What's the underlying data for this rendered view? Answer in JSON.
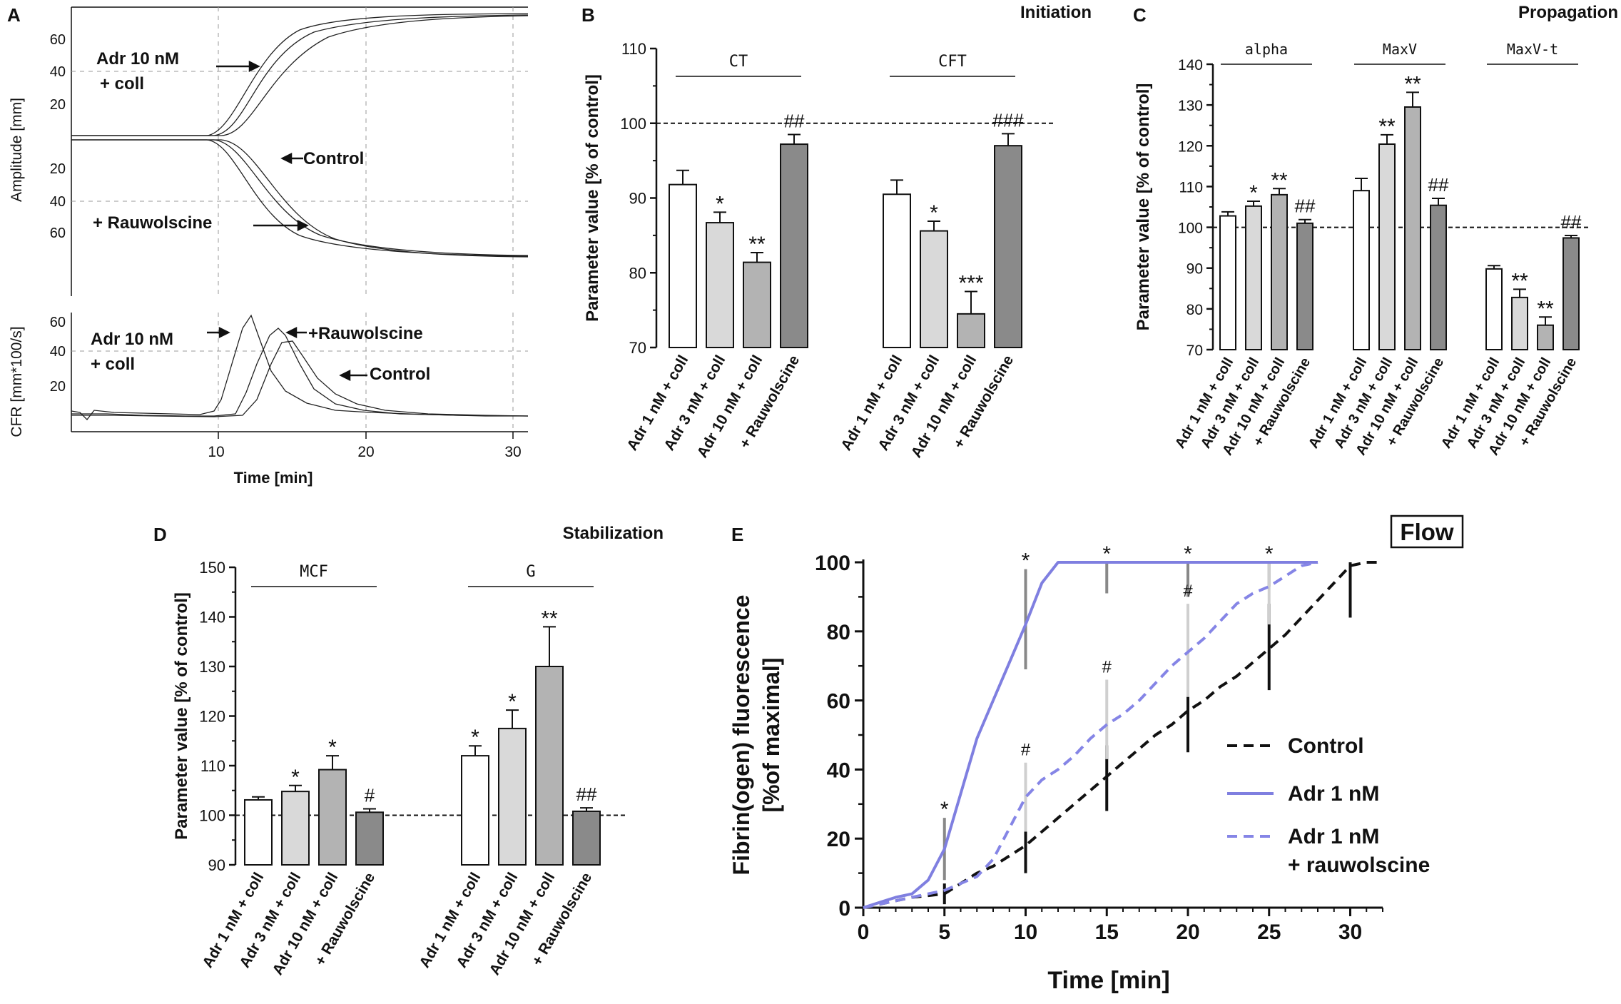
{
  "chart_data": [
    {
      "panel": "A",
      "type": "line",
      "top": {
        "ylabel": "Amplitude [mm]",
        "yticks_up": [
          "60",
          "40",
          "20"
        ],
        "yticks_down": [
          "20",
          "40",
          "60"
        ],
        "annotations": [
          "Adr 10 nM",
          "+ coll",
          "Control",
          "+ Rauwolscine"
        ]
      },
      "bottom": {
        "ylabel": "CFR [mm*100/s]",
        "yticks": [
          "60",
          "40",
          "20"
        ],
        "annotations": [
          "Adr 10 nM",
          "+ coll",
          "+Rauwolscine",
          "Control"
        ],
        "peaks": [
          {
            "name": "Adr 10 nM + coll",
            "x": 12.2,
            "y": 63
          },
          {
            "name": "+Rauwolscine",
            "x": 13.7,
            "y": 54
          },
          {
            "name": "Control",
            "x": 14.8,
            "y": 51
          }
        ]
      },
      "xlabel": "Time [min]",
      "xticks": [
        10,
        20,
        30
      ],
      "xlim": [
        0,
        31
      ]
    },
    {
      "panel": "B",
      "type": "bar",
      "title": "Initiation",
      "ylabel": "Parameter value [% of control]",
      "ylim": [
        70,
        110
      ],
      "yticks": [
        70,
        80,
        90,
        100,
        110
      ],
      "reference": 100,
      "groups": [
        {
          "name": "CT",
          "categories": [
            "Adr 1 nM + coll",
            "Adr 3 nM + coll",
            "Adr 10 nM + coll",
            "+ Rauwolscine"
          ],
          "values": [
            91.8,
            86.7,
            81.4,
            97.2
          ],
          "errors": [
            1.9,
            1.4,
            1.3,
            1.3
          ],
          "marks": [
            "",
            "*",
            "**",
            "##"
          ]
        },
        {
          "name": "CFT",
          "categories": [
            "Adr 1 nM + coll",
            "Adr 3 nM + coll",
            "Adr 10 nM + coll",
            "+ Rauwolscine"
          ],
          "values": [
            90.5,
            85.6,
            74.5,
            97.0
          ],
          "errors": [
            1.9,
            1.3,
            3.0,
            1.6
          ],
          "marks": [
            "",
            "*",
            "***",
            "###"
          ]
        }
      ]
    },
    {
      "panel": "C",
      "type": "bar",
      "title": "Propagation",
      "ylabel": "Parameter value [% of control]",
      "ylim": [
        70,
        140
      ],
      "yticks": [
        70,
        80,
        90,
        100,
        110,
        120,
        130,
        140
      ],
      "reference": 100,
      "groups": [
        {
          "name": "alpha",
          "categories": [
            "Adr 1 nM + coll",
            "Adr 3 nM + coll",
            "Adr 10 nM + coll",
            "+ Rauwolscine"
          ],
          "values": [
            102.8,
            105.2,
            108.0,
            101.0
          ],
          "errors": [
            1.0,
            1.2,
            1.5,
            0.9
          ],
          "marks": [
            "",
            "*",
            "**",
            "##"
          ]
        },
        {
          "name": "MaxV",
          "categories": [
            "Adr 1 nM + coll",
            "Adr 3 nM + coll",
            "Adr 10 nM + coll",
            "+ Rauwolscine"
          ],
          "values": [
            109.0,
            120.4,
            129.5,
            105.4
          ],
          "errors": [
            3.0,
            2.3,
            3.6,
            1.7
          ],
          "marks": [
            "",
            "**",
            "**",
            "##"
          ]
        },
        {
          "name": "MaxV-t",
          "categories": [
            "Adr 1 nM + coll",
            "Adr 3 nM + coll",
            "Adr 10 nM + coll",
            "+ Rauwolscine"
          ],
          "values": [
            89.8,
            82.8,
            76.0,
            97.4
          ],
          "errors": [
            0.8,
            2.0,
            2.0,
            0.6
          ],
          "marks": [
            "",
            "**",
            "**",
            "##"
          ]
        }
      ]
    },
    {
      "panel": "D",
      "type": "bar",
      "title": "Stabilization",
      "ylabel": "Parameter value [% of control]",
      "ylim": [
        90,
        150
      ],
      "yticks": [
        90,
        100,
        110,
        120,
        130,
        140,
        150
      ],
      "reference": 100,
      "groups": [
        {
          "name": "MCF",
          "categories": [
            "Adr 1 nM + coll",
            "Adr 3 nM + coll",
            "Adr 10 nM + coll",
            "+ Rauwolscine"
          ],
          "values": [
            103.1,
            104.8,
            109.2,
            100.6
          ],
          "errors": [
            0.6,
            1.2,
            2.8,
            0.7
          ],
          "marks": [
            "",
            "*",
            "*",
            "#"
          ]
        },
        {
          "name": "G",
          "categories": [
            "Adr 1 nM + coll",
            "Adr 3 nM + coll",
            "Adr 10 nM + coll",
            "+ Rauwolscine"
          ],
          "values": [
            112.0,
            117.5,
            130.0,
            100.8
          ],
          "errors": [
            2.0,
            3.7,
            8.0,
            0.7
          ],
          "marks": [
            "*",
            "*",
            "**",
            "##"
          ]
        }
      ]
    },
    {
      "panel": "E",
      "type": "line",
      "title": "Flow",
      "xlabel": "Time [min]",
      "ylabel_line1": "Fibrin(ogen) fluorescence",
      "ylabel_line2": "[%of maximal]",
      "xlim": [
        0,
        32
      ],
      "ylim": [
        0,
        100
      ],
      "xticks": [
        0,
        5,
        10,
        15,
        20,
        25,
        30
      ],
      "yticks": [
        0,
        20,
        40,
        60,
        80,
        100
      ],
      "series": [
        {
          "name": "Control",
          "color": "#111111",
          "dash": true,
          "x": [
            0,
            1,
            2,
            3,
            4,
            5,
            6,
            7,
            8,
            9,
            10,
            11,
            12,
            13,
            14,
            15,
            16,
            17,
            18,
            19,
            20,
            21,
            22,
            23,
            24,
            25,
            26,
            27,
            28,
            29,
            30,
            31,
            32
          ],
          "y": [
            0,
            1,
            2,
            3,
            3.5,
            4,
            7,
            10,
            12,
            15,
            18,
            22,
            26,
            30,
            34,
            38,
            42,
            46,
            50,
            53,
            57,
            60,
            64,
            67,
            71,
            75,
            79,
            84,
            89,
            94,
            99,
            100,
            100
          ],
          "errors": [
            {
              "x": 5,
              "lo": 1,
              "hi": 7
            },
            {
              "x": 10,
              "lo": 10,
              "hi": 27
            },
            {
              "x": 15,
              "lo": 28,
              "hi": 47
            },
            {
              "x": 20,
              "lo": 45,
              "hi": 70
            },
            {
              "x": 25,
              "lo": 63,
              "hi": 88
            },
            {
              "x": 30,
              "lo": 84,
              "hi": 100
            }
          ]
        },
        {
          "name": "Adr 1 nM",
          "color": "#7f7fe0",
          "dash": false,
          "x": [
            0,
            1,
            2,
            3,
            4,
            5,
            6,
            7,
            8,
            9,
            10,
            11,
            12,
            13,
            15,
            20,
            25,
            28
          ],
          "y": [
            0,
            1.5,
            3,
            4,
            8,
            17,
            33,
            49,
            60,
            71,
            82,
            94,
            100,
            100,
            100,
            100,
            100,
            100
          ],
          "errors": [
            {
              "x": 5,
              "lo": 8,
              "hi": 26
            },
            {
              "x": 10,
              "lo": 69,
              "hi": 98
            },
            {
              "x": 15,
              "lo": 91,
              "hi": 100
            },
            {
              "x": 20,
              "lo": 90,
              "hi": 100
            },
            {
              "x": 25,
              "lo": 93,
              "hi": 100
            }
          ]
        },
        {
          "name": "Adr 1 nM\n+ rauwolscine",
          "color": "#8585e6",
          "dash": true,
          "x": [
            0,
            1,
            2,
            3,
            4,
            5,
            6,
            7,
            8,
            9,
            10,
            11,
            12,
            13,
            14,
            15,
            16,
            17,
            18,
            19,
            20,
            21,
            22,
            23,
            24,
            25,
            26,
            27,
            28
          ],
          "y": [
            0,
            1,
            2,
            3,
            4,
            5,
            7,
            9,
            14,
            23,
            32,
            37,
            40,
            44,
            49,
            53,
            56,
            60,
            65,
            70,
            74,
            78,
            83,
            88,
            91,
            93,
            96,
            99,
            100
          ],
          "errors": [
            {
              "x": 10,
              "lo": 22,
              "hi": 42
            },
            {
              "x": 15,
              "lo": 43,
              "hi": 66
            },
            {
              "x": 20,
              "lo": 61,
              "hi": 88
            },
            {
              "x": 25,
              "lo": 82,
              "hi": 100
            }
          ]
        }
      ],
      "significance": [
        {
          "x": 5,
          "y": 26,
          "mark": "*"
        },
        {
          "x": 10,
          "y": 98,
          "mark": "*"
        },
        {
          "x": 15,
          "y": 100,
          "mark": "*"
        },
        {
          "x": 20,
          "y": 100,
          "mark": "*"
        },
        {
          "x": 25,
          "y": 100,
          "mark": "*"
        },
        {
          "x": 10,
          "y": 42,
          "mark": "#"
        },
        {
          "x": 15,
          "y": 66,
          "mark": "#"
        },
        {
          "x": 20,
          "y": 88,
          "mark": "#"
        }
      ]
    }
  ],
  "labels": {
    "panel_a": "A",
    "panel_b": "B",
    "panel_c": "C",
    "panel_d": "D",
    "panel_e": "E"
  },
  "colors": {
    "white_bar": "#ffffff",
    "light_bar": "#d9d9d9",
    "mid_bar": "#b3b3b3",
    "dark_bar": "#8a8a8a",
    "axis": "#111111"
  }
}
